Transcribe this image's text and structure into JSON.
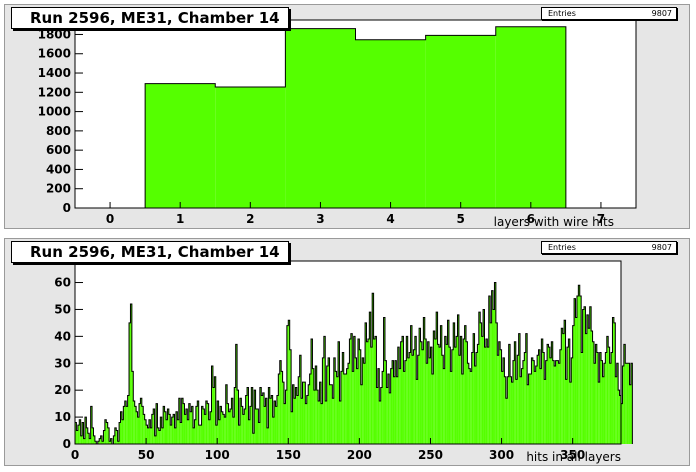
{
  "colors": {
    "fill": "#55ff00",
    "line": "#000000",
    "pad": "#e6e6e6"
  },
  "chart_data": [
    {
      "type": "bar",
      "title": "Run 2596, ME31, Chamber 14",
      "xlabel": "layers with wire hits",
      "ylabel": "",
      "stats": {
        "label": "Entries",
        "value": "9807"
      },
      "xlim": [
        -0.5,
        7.5
      ],
      "ylim": [
        0,
        1950
      ],
      "xticks": [
        0,
        1,
        2,
        3,
        4,
        5,
        6,
        7
      ],
      "yticks": [
        0,
        200,
        400,
        600,
        800,
        1000,
        1200,
        1400,
        1600,
        1800
      ],
      "bin_edges": [
        0.5,
        1.5,
        2.5,
        3.5,
        4.5,
        5.5,
        6.5
      ],
      "values": [
        1290,
        1255,
        1860,
        1745,
        1790,
        1880
      ],
      "grid": false,
      "legend": "top-right"
    },
    {
      "type": "bar",
      "title": "Run 2596, ME31, Chamber 14",
      "xlabel": "hits in all layers",
      "ylabel": "",
      "stats": {
        "label": "Entries",
        "value": "9807"
      },
      "xlim": [
        0,
        384
      ],
      "ylim": [
        0,
        68
      ],
      "xticks": [
        0,
        50,
        100,
        150,
        200,
        250,
        300,
        350
      ],
      "yticks": [
        0,
        10,
        20,
        30,
        40,
        50,
        60
      ],
      "bin_width": 1,
      "values": [
        8,
        5,
        7,
        9,
        3,
        8,
        2,
        10,
        6,
        4,
        2,
        14,
        6,
        3,
        1,
        0,
        1,
        2,
        3,
        1,
        5,
        9,
        8,
        6,
        1,
        2,
        0,
        3,
        6,
        5,
        1,
        8,
        12,
        9,
        14,
        16,
        14,
        18,
        45,
        52,
        27,
        16,
        14,
        12,
        10,
        15,
        17,
        14,
        11,
        9,
        7,
        6,
        9,
        6,
        11,
        13,
        3,
        15,
        6,
        5,
        10,
        6,
        14,
        12,
        9,
        13,
        11,
        7,
        10,
        11,
        6,
        12,
        9,
        17,
        8,
        17,
        15,
        11,
        13,
        9,
        15,
        12,
        14,
        6,
        9,
        14,
        16,
        7,
        7,
        14,
        13,
        11,
        16,
        15,
        9,
        12,
        29,
        21,
        25,
        7,
        16,
        9,
        14,
        12,
        11,
        10,
        22,
        15,
        12,
        13,
        17,
        10,
        21,
        37,
        20,
        7,
        17,
        14,
        11,
        13,
        18,
        21,
        9,
        14,
        21,
        4,
        20,
        13,
        13,
        8,
        21,
        18,
        19,
        14,
        17,
        6,
        21,
        17,
        18,
        10,
        16,
        14,
        18,
        26,
        31,
        27,
        23,
        15,
        20,
        44,
        46,
        35,
        12,
        22,
        17,
        21,
        18,
        25,
        33,
        17,
        23,
        23,
        15,
        18,
        22,
        26,
        39,
        28,
        20,
        29,
        20,
        16,
        23,
        15,
        32,
        40,
        16,
        29,
        32,
        22,
        22,
        17,
        32,
        27,
        25,
        38,
        16,
        27,
        34,
        26,
        26,
        28,
        30,
        39,
        41,
        27,
        40,
        32,
        28,
        39,
        35,
        22,
        32,
        30,
        45,
        38,
        39,
        49,
        36,
        56,
        39,
        40,
        21,
        28,
        16,
        21,
        27,
        47,
        31,
        21,
        26,
        19,
        28,
        31,
        25,
        31,
        25,
        36,
        28,
        38,
        40,
        27,
        31,
        40,
        32,
        34,
        44,
        33,
        35,
        40,
        24,
        33,
        43,
        38,
        35,
        47,
        39,
        30,
        38,
        32,
        36,
        26,
        42,
        39,
        49,
        37,
        36,
        44,
        33,
        28,
        40,
        37,
        46,
        36,
        27,
        35,
        45,
        36,
        40,
        48,
        33,
        40,
        26,
        39,
        44,
        38,
        30,
        28,
        27,
        34,
        41,
        29,
        34,
        37,
        49,
        45,
        40,
        50,
        36,
        39,
        36,
        55,
        45,
        57,
        50,
        60,
        45,
        33,
        38,
        35,
        27,
        32,
        25,
        17,
        25,
        37,
        25,
        23,
        31,
        38,
        24,
        33,
        41,
        25,
        28,
        31,
        34,
        41,
        22,
        26,
        26,
        32,
        31,
        27,
        29,
        33,
        35,
        28,
        39,
        34,
        24,
        31,
        37,
        36,
        32,
        38,
        31,
        29,
        31,
        31,
        30,
        35,
        43,
        41,
        46,
        24,
        36,
        39,
        23,
        32,
        44,
        54,
        47,
        55,
        59,
        55,
        34,
        50,
        51,
        41,
        48,
        43,
        51,
        42,
        38,
        30,
        37,
        34,
        23,
        34,
        31,
        25,
        30,
        34,
        40,
        36,
        30,
        34,
        47,
        45,
        25,
        30,
        20,
        18,
        15,
        29,
        37,
        30,
        30,
        30,
        22,
        30
      ],
      "grid": false,
      "legend": "top-right"
    }
  ]
}
